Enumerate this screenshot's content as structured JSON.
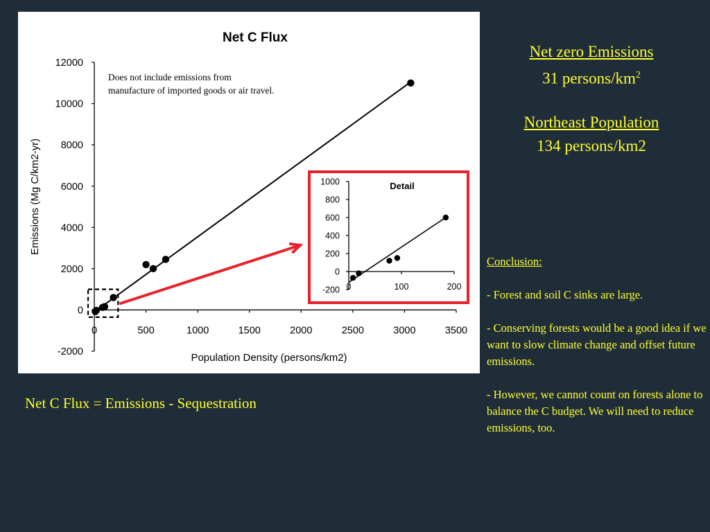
{
  "sidebar": {
    "net_zero_title": "Net zero Emissions",
    "net_zero_value": "31 persons/km",
    "net_zero_exp": "2",
    "northeast_title": "Northeast Population",
    "northeast_value": "134 persons/km2"
  },
  "conclusion": {
    "heading": "Conclusion:",
    "points": [
      "- Forest and soil C sinks are large.",
      "- Conserving forests would be a good idea if we want to slow climate change and offset future emissions.",
      "-  However, we cannot count on forests alone to balance the C budget. We will need to reduce emissions, too."
    ]
  },
  "formula": "Net C Flux = Emissions - Sequestration",
  "colors": {
    "text_accent": "#ffff33",
    "background": "#1f2d38",
    "arrow": "#e8222a"
  },
  "chart_data": [
    {
      "type": "scatter",
      "title": "Net C Flux",
      "xlabel": "Population Density  (persons/km2)",
      "ylabel": "Emissions (Mg C/km2-yr)",
      "annotation": "Does not include emissions from manufacture of imported goods or air travel.",
      "xlim": [
        0,
        3500
      ],
      "ylim": [
        -2000,
        12000
      ],
      "x_ticks": [
        "0",
        "500",
        "1000",
        "1500",
        "2000",
        "2500",
        "3000",
        "3500"
      ],
      "y_ticks": [
        "-2000",
        "0",
        "2000",
        "4000",
        "6000",
        "8000",
        "10000",
        "12000"
      ],
      "points": [
        {
          "x": 10,
          "y": -80
        },
        {
          "x": 20,
          "y": -20
        },
        {
          "x": 80,
          "y": 120
        },
        {
          "x": 100,
          "y": 160
        },
        {
          "x": 185,
          "y": 600
        },
        {
          "x": 500,
          "y": 2200
        },
        {
          "x": 570,
          "y": 2000
        },
        {
          "x": 690,
          "y": 2450
        },
        {
          "x": 3060,
          "y": 11000
        }
      ],
      "trendline": [
        {
          "x": 0,
          "y": -100
        },
        {
          "x": 3060,
          "y": 11050
        }
      ],
      "grid": false
    },
    {
      "type": "scatter",
      "title": "Detail",
      "xlim": [
        0,
        200
      ],
      "ylim": [
        -200,
        1000
      ],
      "x_ticks": [
        "0",
        "100",
        "200"
      ],
      "y_ticks": [
        "-200",
        "0",
        "200",
        "400",
        "600",
        "800",
        "1000"
      ],
      "points": [
        {
          "x": 8,
          "y": -70
        },
        {
          "x": 19,
          "y": -20
        },
        {
          "x": 77,
          "y": 120
        },
        {
          "x": 92,
          "y": 150
        },
        {
          "x": 184,
          "y": 600
        }
      ],
      "trendline": [
        {
          "x": 0,
          "y": -120
        },
        {
          "x": 184,
          "y": 600
        }
      ],
      "grid": false
    }
  ]
}
